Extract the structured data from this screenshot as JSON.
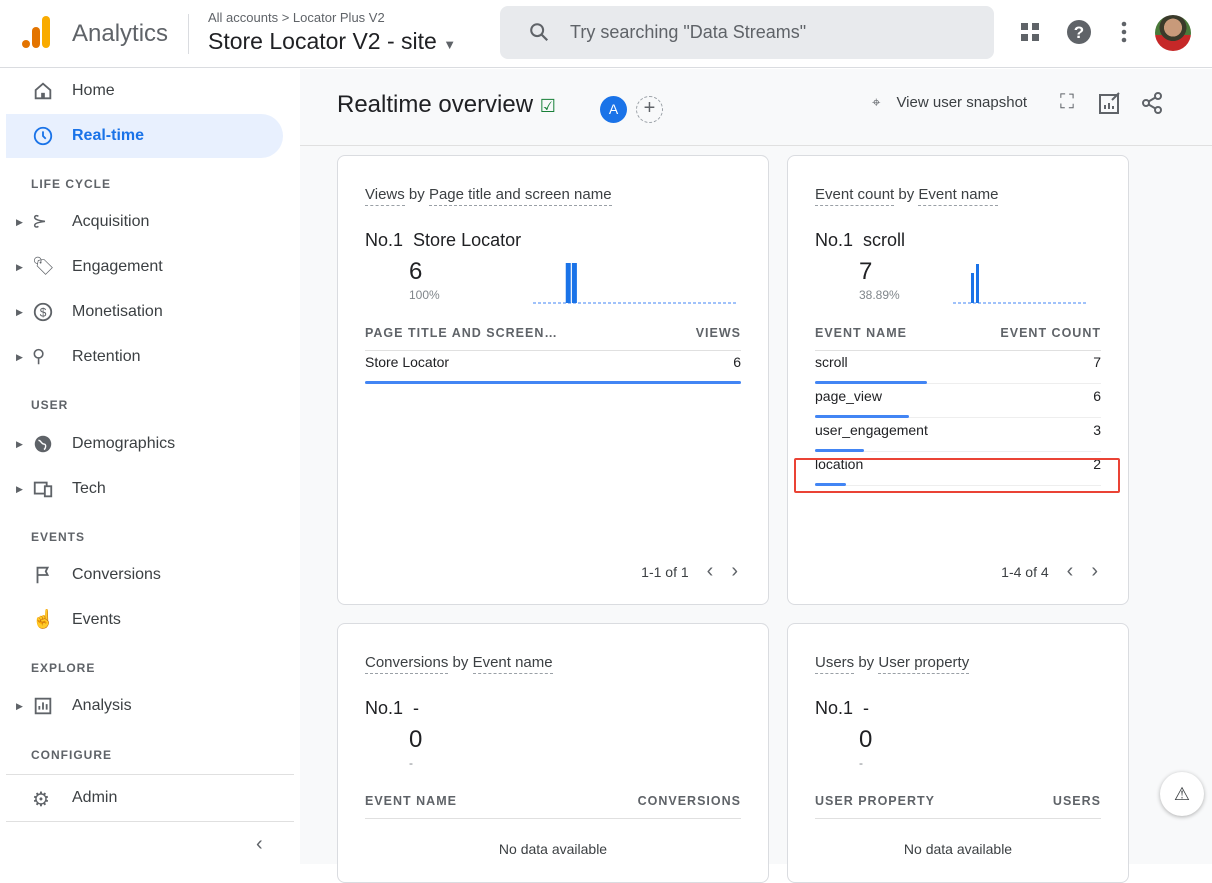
{
  "header": {
    "brand": "Analytics",
    "breadcrumb": "All accounts > Locator Plus V2",
    "property": "Store Locator V2 - site",
    "search_placeholder": "Try searching \"Data Streams\""
  },
  "sidebar": {
    "items": [
      {
        "label": "Home",
        "icon": "home-icon",
        "active": false
      },
      {
        "label": "Real-time",
        "icon": "clock-icon",
        "active": true
      }
    ],
    "sections": [
      {
        "title": "LIFE CYCLE",
        "items": [
          "Acquisition",
          "Engagement",
          "Monetisation",
          "Retention"
        ]
      },
      {
        "title": "USER",
        "items": [
          "Demographics",
          "Tech"
        ]
      },
      {
        "title": "EVENTS",
        "items": [
          "Conversions",
          "Events"
        ]
      },
      {
        "title": "EXPLORE",
        "items": [
          "Analysis"
        ]
      },
      {
        "title": "CONFIGURE",
        "items": [
          "Admin"
        ]
      }
    ]
  },
  "main": {
    "title": "Realtime overview",
    "comparison_badge": "A",
    "snapshot_label": "View user snapshot",
    "cards": [
      {
        "title_a": "Views",
        "title_by": "by",
        "title_b": "Page title and screen name",
        "rank": "No.1",
        "top": "Store Locator",
        "value": "6",
        "percent": "100%",
        "col1": "PAGE TITLE AND SCREEN…",
        "col2": "VIEWS",
        "rows": [
          {
            "name": "Store Locator",
            "value": "6",
            "fraction": 1.0
          }
        ],
        "pager": "1-1 of 1",
        "spark": [
          0,
          0,
          0,
          0,
          0,
          6,
          6,
          0,
          0,
          0,
          0,
          0,
          0,
          0,
          0,
          0,
          0,
          0,
          0,
          0,
          0,
          0,
          0,
          0,
          0,
          0,
          0,
          0,
          0,
          0
        ]
      },
      {
        "title_a": "Event count",
        "title_by": "by",
        "title_b": "Event name",
        "rank": "No.1",
        "top": "scroll",
        "value": "7",
        "percent": "38.89%",
        "col1": "EVENT NAME",
        "col2": "EVENT COUNT",
        "rows": [
          {
            "name": "scroll",
            "value": "7",
            "fraction": 0.39
          },
          {
            "name": "page_view",
            "value": "6",
            "fraction": 0.33
          },
          {
            "name": "user_engagement",
            "value": "3",
            "fraction": 0.17
          },
          {
            "name": "location",
            "value": "2",
            "fraction": 0.11
          }
        ],
        "pager": "1-4 of 4",
        "highlighted_row": "location"
      },
      {
        "title_a": "Conversions",
        "title_by": "by",
        "title_b": "Event name",
        "rank": "No.1",
        "top": "-",
        "value": "0",
        "percent": "-",
        "col1": "EVENT NAME",
        "col2": "CONVERSIONS",
        "nodata": "No data available"
      },
      {
        "title_a": "Users",
        "title_by": "by",
        "title_b": "User property",
        "rank": "No.1",
        "top": "-",
        "value": "0",
        "percent": "-",
        "col1": "USER PROPERTY",
        "col2": "USERS",
        "nodata": "No data available"
      }
    ]
  },
  "colors": {
    "accent": "#1a73e8",
    "bar": "#4285f4",
    "highlight": "#ea4335"
  }
}
